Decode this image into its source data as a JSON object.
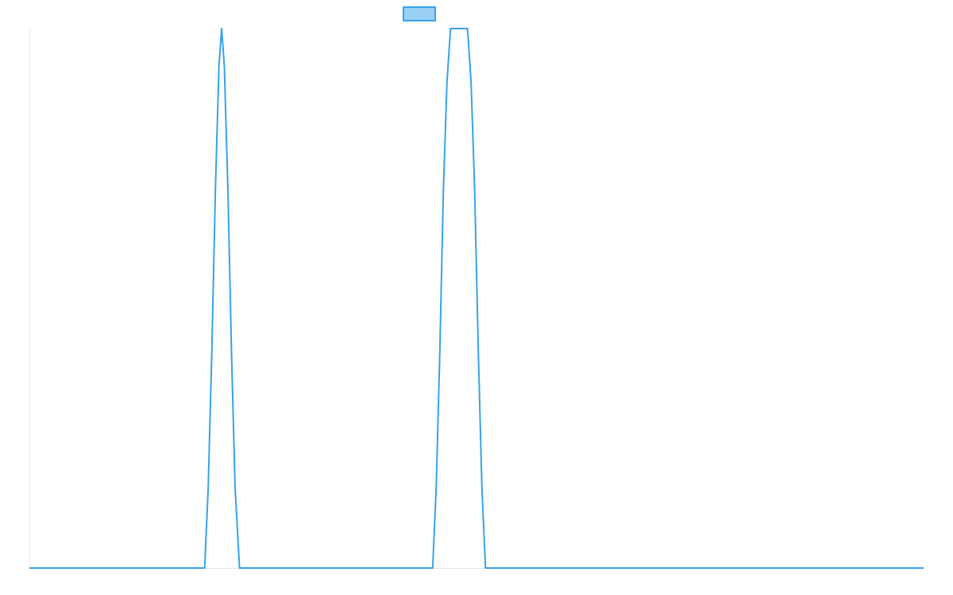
{
  "chart_data": {
    "type": "line",
    "title": "",
    "xlabel": "",
    "ylabel": "",
    "legend_placement": "top-center",
    "grid": false,
    "xlim": [
      0,
      1
    ],
    "ylim": [
      0,
      1
    ],
    "series": [
      {
        "name": "",
        "color": "#36a2eb",
        "fill": "#9ad0f5",
        "points": [
          [
            0.0,
            0.0
          ],
          [
            0.196,
            0.0
          ],
          [
            0.2,
            0.15
          ],
          [
            0.204,
            0.4
          ],
          [
            0.208,
            0.7
          ],
          [
            0.212,
            0.93
          ],
          [
            0.215,
            1.0
          ],
          [
            0.218,
            0.93
          ],
          [
            0.222,
            0.7
          ],
          [
            0.226,
            0.4
          ],
          [
            0.23,
            0.15
          ],
          [
            0.235,
            0.0
          ],
          [
            0.451,
            0.0
          ],
          [
            0.455,
            0.15
          ],
          [
            0.459,
            0.4
          ],
          [
            0.463,
            0.7
          ],
          [
            0.467,
            0.9
          ],
          [
            0.471,
            1.0
          ],
          [
            0.49,
            1.0
          ],
          [
            0.494,
            0.9
          ],
          [
            0.498,
            0.7
          ],
          [
            0.502,
            0.4
          ],
          [
            0.506,
            0.15
          ],
          [
            0.51,
            0.0
          ],
          [
            1.0,
            0.0
          ]
        ]
      }
    ]
  }
}
